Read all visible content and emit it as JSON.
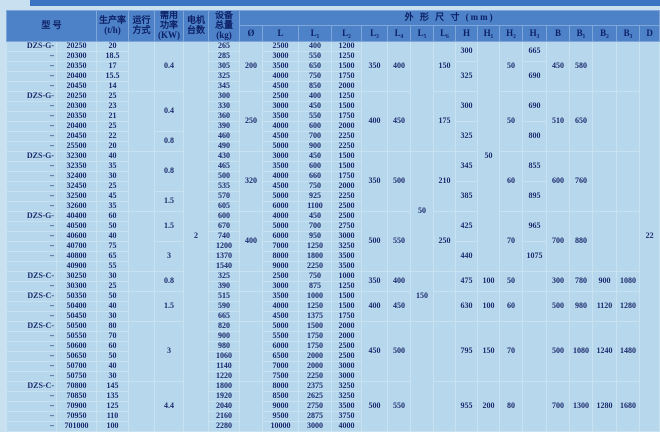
{
  "table": {
    "header": {
      "model": "型  号",
      "rate": "生产率\n(t/h)",
      "mode": "运行\n方式",
      "power": "需用\n功率\n(KW)",
      "motors": "电机\n台数",
      "mass": "设备\n总量\n(kg)",
      "dims": "外 形 尺 寸 (mm)",
      "dim_cols": [
        "Ø",
        "L",
        "L₁",
        "L₂",
        "L₃",
        "L₄",
        "L₅",
        "L₆",
        "H",
        "H₁",
        "H₂",
        "H₃",
        "B",
        "B₁",
        "B₂",
        "B₃",
        "D"
      ]
    },
    "spans": {
      "motors": "2",
      "D": "22",
      "L5": [
        [
          "",
          11
        ],
        [
          "50",
          12
        ],
        [
          "150",
          5
        ],
        [
          "",
          11
        ]
      ],
      "H1": [
        [
          "50",
          23
        ],
        [
          "100",
          2
        ],
        [
          "100",
          3
        ],
        [
          "150",
          6
        ],
        [
          "200",
          5
        ]
      ]
    },
    "groups": [
      {
        "dia": "200",
        "power": [
          [
            "0.4",
            5
          ]
        ],
        "L3": "350",
        "L4": "400",
        "L6": "150",
        "H": [
          [
            "300",
            2
          ],
          [
            "325",
            3
          ]
        ],
        "H2": "50",
        "H3": [
          [
            "665",
            2
          ],
          [
            "690",
            3
          ]
        ],
        "B": "450",
        "B1": "580",
        "B2": "",
        "B3": "",
        "rows": [
          [
            "DZS-G-",
            "20250",
            "20",
            "265",
            "2500",
            "400",
            "1200"
          ],
          [
            "–",
            "20300",
            "18.5",
            "285",
            "3000",
            "550",
            "1250"
          ],
          [
            "–",
            "20350",
            "17",
            "305",
            "3500",
            "650",
            "1500"
          ],
          [
            "–",
            "20400",
            "15.5",
            "325",
            "4000",
            "750",
            "1750"
          ],
          [
            "–",
            "20450",
            "14",
            "345",
            "4500",
            "850",
            "2000"
          ]
        ]
      },
      {
        "dia": "250",
        "power": [
          [
            "0.4",
            4
          ],
          [
            "0.8",
            2
          ]
        ],
        "L3": "400",
        "L4": "450",
        "L6": "175",
        "H": [
          [
            "300",
            3
          ],
          [
            "325",
            3
          ]
        ],
        "H2": "50",
        "H3": [
          [
            "690",
            3
          ],
          [
            "800",
            3
          ]
        ],
        "B": "510",
        "B1": "650",
        "B2": "",
        "B3": "",
        "rows": [
          [
            "DZS-G-",
            "20250",
            "25",
            "300",
            "2500",
            "400",
            "1250"
          ],
          [
            "–",
            "20300",
            "23",
            "330",
            "3000",
            "450",
            "1500"
          ],
          [
            "–",
            "20350",
            "21",
            "360",
            "3500",
            "550",
            "1750"
          ],
          [
            "–",
            "20400",
            "25",
            "390",
            "4000",
            "600",
            "2000"
          ],
          [
            "–",
            "20450",
            "22",
            "460",
            "4500",
            "700",
            "2250"
          ],
          [
            "–",
            "25500",
            "20",
            "490",
            "5000",
            "900",
            "2250"
          ]
        ]
      },
      {
        "dia": "320",
        "power": [
          [
            "0.8",
            4
          ],
          [
            "1.5",
            2
          ]
        ],
        "L3": "350",
        "L4": "500",
        "L6": "210",
        "H": [
          [
            "345",
            3
          ],
          [
            "385",
            3
          ]
        ],
        "H2": "60",
        "H3": [
          [
            "855",
            3
          ],
          [
            "895",
            3
          ]
        ],
        "B": "600",
        "B1": "760",
        "B2": "",
        "B3": "",
        "rows": [
          [
            "DZS-G-",
            "32300",
            "40",
            "430",
            "3000",
            "450",
            "1500"
          ],
          [
            "–",
            "32350",
            "35",
            "465",
            "3500",
            "600",
            "1500"
          ],
          [
            "–",
            "32400",
            "30",
            "500",
            "4000",
            "660",
            "1750"
          ],
          [
            "–",
            "32450",
            "25",
            "535",
            "4500",
            "750",
            "2000"
          ],
          [
            "–",
            "32500",
            "45",
            "570",
            "5000",
            "925",
            "2250"
          ],
          [
            "–",
            "32600",
            "35",
            "605",
            "6000",
            "1100",
            "2500"
          ]
        ]
      },
      {
        "dia": "400",
        "power": [
          [
            "1.5",
            3
          ],
          [
            "3",
            3
          ]
        ],
        "L3": "500",
        "L4": "550",
        "L6": "250",
        "H": [
          [
            "425",
            3
          ],
          [
            "440",
            3
          ]
        ],
        "H2": "70",
        "H3": [
          [
            "965",
            3
          ],
          [
            "1075",
            3
          ]
        ],
        "B": "700",
        "B1": "880",
        "B2": "",
        "B3": "",
        "rows": [
          [
            "DZS-G-",
            "40400",
            "60",
            "600",
            "4000",
            "450",
            "2500"
          ],
          [
            "–",
            "40500",
            "50",
            "670",
            "5000",
            "700",
            "2750"
          ],
          [
            "–",
            "40600",
            "40",
            "740",
            "6000",
            "950",
            "3000"
          ],
          [
            "–",
            "40700",
            "75",
            "1200",
            "7000",
            "1250",
            "3250"
          ],
          [
            "–",
            "40800",
            "65",
            "1370",
            "8000",
            "1800",
            "3500"
          ],
          [
            "",
            "40900",
            "55",
            "1540",
            "9000",
            "2250",
            "3500"
          ]
        ]
      },
      {
        "dia": "",
        "power": [
          [
            "0.8",
            2
          ]
        ],
        "L3": "350",
        "L4": "400",
        "L6": "",
        "H": [
          [
            "475",
            2
          ]
        ],
        "H2": "50",
        "H3": [
          [
            "",
            2
          ]
        ],
        "B": "300",
        "B1": "780",
        "B2": "900",
        "B3": "1080",
        "rows": [
          [
            "DZS-C-",
            "30250",
            "30",
            "325",
            "2500",
            "750",
            "1000"
          ],
          [
            "–",
            "30300",
            "25",
            "390",
            "3000",
            "875",
            "1250"
          ]
        ]
      },
      {
        "dia": "",
        "power": [
          [
            "1.5",
            3
          ]
        ],
        "L3": "400",
        "L4": "450",
        "L6": "",
        "H": [
          [
            "630",
            3
          ]
        ],
        "H2": "60",
        "H3": [
          [
            "",
            3
          ]
        ],
        "B": "500",
        "B1": "980",
        "B2": "1120",
        "B3": "1280",
        "rows": [
          [
            "DZS-C-",
            "50350",
            "50",
            "515",
            "3500",
            "1000",
            "1500"
          ],
          [
            "–",
            "50400",
            "40",
            "590",
            "4000",
            "1250",
            "1500"
          ],
          [
            "–",
            "50450",
            "30",
            "665",
            "4500",
            "1375",
            "1750"
          ]
        ]
      },
      {
        "dia": "",
        "power": [
          [
            "3",
            6
          ]
        ],
        "L3": "450",
        "L4": "500",
        "L6": "",
        "H": [
          [
            "795",
            6
          ]
        ],
        "H2": "70",
        "H3": [
          [
            "",
            6
          ]
        ],
        "B": "500",
        "B1": "1080",
        "B2": "1240",
        "B3": "1480",
        "rows": [
          [
            "DZS-C-",
            "50500",
            "80",
            "820",
            "5000",
            "1500",
            "2000"
          ],
          [
            "–",
            "50550",
            "70",
            "900",
            "5500",
            "1750",
            "2000"
          ],
          [
            "–",
            "50600",
            "60",
            "980",
            "6000",
            "1750",
            "2500"
          ],
          [
            "–",
            "50650",
            "50",
            "1060",
            "6500",
            "2000",
            "2500"
          ],
          [
            "–",
            "50700",
            "40",
            "1140",
            "7000",
            "2000",
            "3000"
          ],
          [
            "–",
            "50750",
            "30",
            "1220",
            "7500",
            "2250",
            "3000"
          ]
        ]
      },
      {
        "dia": "",
        "power": [
          [
            "4.4",
            5
          ]
        ],
        "L3": "500",
        "L4": "550",
        "L6": "",
        "H": [
          [
            "955",
            5
          ]
        ],
        "H2": "80",
        "H3": [
          [
            "",
            5
          ]
        ],
        "B": "700",
        "B1": "1300",
        "B2": "1280",
        "B3": "1680",
        "rows": [
          [
            "DZS-C-",
            "70800",
            "145",
            "1800",
            "8000",
            "2375",
            "3250"
          ],
          [
            "–",
            "70850",
            "135",
            "1920",
            "8500",
            "2625",
            "3250"
          ],
          [
            "–",
            "70900",
            "125",
            "2040",
            "9000",
            "2750",
            "3500"
          ],
          [
            "–",
            "70950",
            "110",
            "2160",
            "9500",
            "2875",
            "3750"
          ],
          [
            "–",
            "701000",
            "100",
            "2280",
            "10000",
            "3000",
            "4000"
          ]
        ]
      }
    ]
  }
}
